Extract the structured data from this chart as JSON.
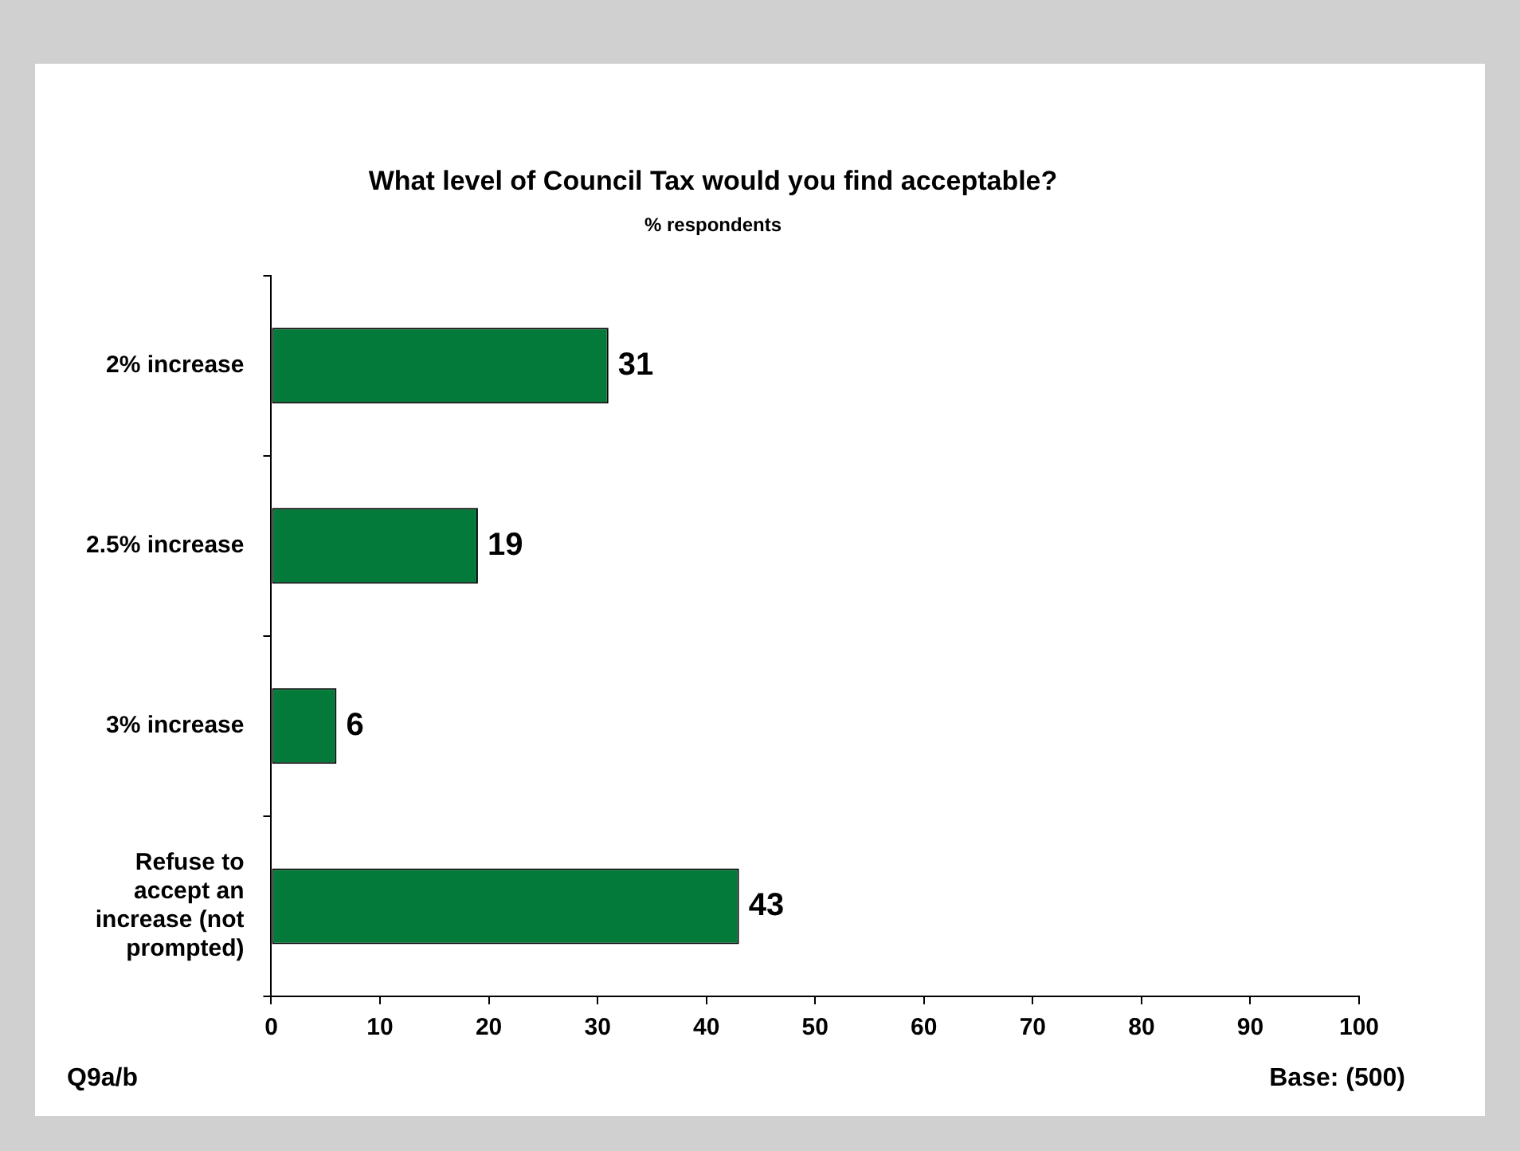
{
  "chart_data": {
    "type": "bar",
    "orientation": "horizontal",
    "title": "What level of Council Tax would you find acceptable?",
    "subtitle": "% respondents",
    "categories": [
      "2% increase",
      "2.5% increase",
      "3% increase",
      "Refuse to accept an increase (not prompted)"
    ],
    "values": [
      31,
      19,
      6,
      43
    ],
    "color": "#047a3a",
    "xlim": [
      0,
      100
    ],
    "xticks": [
      0,
      10,
      20,
      30,
      40,
      50,
      60,
      70,
      80,
      90,
      100
    ],
    "grid": false,
    "legend": false,
    "data_labels": true,
    "annotations": [
      "Q9a/b",
      "Base: (500)"
    ]
  }
}
